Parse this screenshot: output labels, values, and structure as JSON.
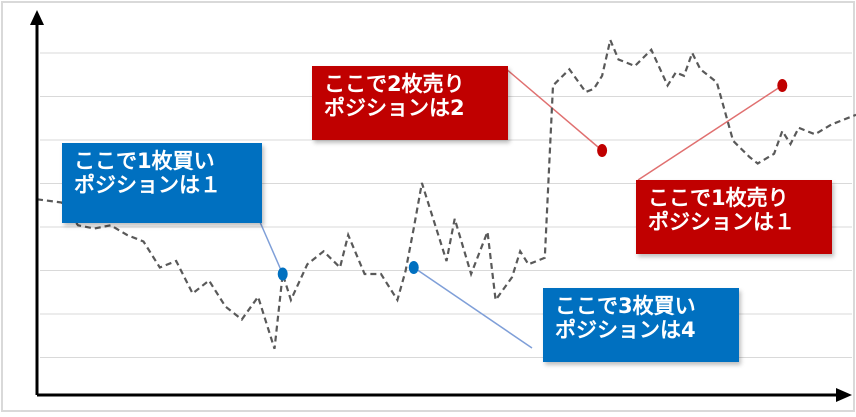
{
  "colors": {
    "buy": "#0070c0",
    "sell": "#c00000",
    "buy_line": "#7f9fd8",
    "sell_line": "#e07070",
    "price_line": "#595959",
    "grid": "#d9d9d9",
    "axis": "#000000"
  },
  "callouts": [
    {
      "id": "buy1",
      "side": "buy",
      "lines": [
        "ここで1枚買い",
        "ポジションは１"
      ]
    },
    {
      "id": "sell2",
      "side": "sell",
      "lines": [
        "ここで2枚売り",
        "ポジションは2"
      ]
    },
    {
      "id": "sell1",
      "side": "sell",
      "lines": [
        "ここで1枚売り",
        "ポジションは１"
      ]
    },
    {
      "id": "buy3",
      "side": "buy",
      "lines": [
        "ここで3枚買い",
        "ポジションは4"
      ]
    }
  ],
  "chart_data": {
    "type": "line",
    "title": "",
    "xlabel": "",
    "ylabel": "",
    "grid": true,
    "legend": "none",
    "x_range": [
      0,
      100
    ],
    "y_range": [
      0,
      100
    ],
    "series": [
      {
        "style": "dashed",
        "x": [
          0,
          3,
          5,
          7,
          9,
          11,
          13,
          15,
          17,
          19,
          21,
          23,
          25,
          27,
          28,
          29,
          30,
          31,
          33,
          35,
          37,
          38,
          40,
          42,
          44,
          45,
          46,
          47,
          48,
          50,
          51,
          53,
          55,
          56,
          58,
          59,
          60,
          62,
          63,
          65,
          67,
          68,
          69,
          70,
          71,
          73,
          75,
          77,
          78,
          79,
          80,
          81,
          83,
          85,
          87,
          88,
          90,
          91,
          92,
          93,
          95,
          97,
          100
        ],
        "y": [
          51,
          50,
          43,
          42,
          43,
          40,
          38,
          30,
          32,
          22,
          26,
          18,
          14,
          21,
          13,
          5,
          28,
          20,
          31,
          35,
          30,
          40,
          28,
          28,
          20,
          29,
          42,
          56,
          48,
          32,
          45,
          28,
          41,
          20,
          27,
          35,
          31,
          33,
          86,
          91,
          84,
          85,
          89,
          100,
          94,
          92,
          97,
          86,
          90,
          89,
          96,
          91,
          87,
          69,
          64,
          62,
          65,
          72,
          68,
          73,
          71,
          74,
          77
        ]
      }
    ],
    "markers": [
      {
        "side": "buy",
        "x": 30,
        "y": 28
      },
      {
        "side": "buy",
        "x": 46,
        "y": 30
      },
      {
        "side": "sell",
        "x": 69,
        "y": 66
      },
      {
        "side": "sell",
        "x": 91,
        "y": 86
      }
    ]
  }
}
